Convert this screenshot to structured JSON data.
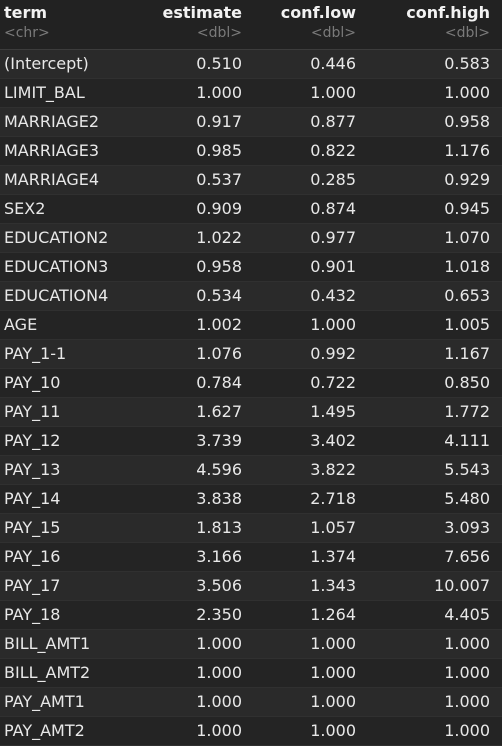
{
  "columns": [
    {
      "name": "term",
      "type": "<chr>"
    },
    {
      "name": "estimate",
      "type": "<dbl>"
    },
    {
      "name": "conf.low",
      "type": "<dbl>"
    },
    {
      "name": "conf.high",
      "type": "<dbl>"
    }
  ],
  "rows": [
    [
      "(Intercept)",
      "0.510",
      "0.446",
      "0.583"
    ],
    [
      "LIMIT_BAL",
      "1.000",
      "1.000",
      "1.000"
    ],
    [
      "MARRIAGE2",
      "0.917",
      "0.877",
      "0.958"
    ],
    [
      "MARRIAGE3",
      "0.985",
      "0.822",
      "1.176"
    ],
    [
      "MARRIAGE4",
      "0.537",
      "0.285",
      "0.929"
    ],
    [
      "SEX2",
      "0.909",
      "0.874",
      "0.945"
    ],
    [
      "EDUCATION2",
      "1.022",
      "0.977",
      "1.070"
    ],
    [
      "EDUCATION3",
      "0.958",
      "0.901",
      "1.018"
    ],
    [
      "EDUCATION4",
      "0.534",
      "0.432",
      "0.653"
    ],
    [
      "AGE",
      "1.002",
      "1.000",
      "1.005"
    ],
    [
      "PAY_1-1",
      "1.076",
      "0.992",
      "1.167"
    ],
    [
      "PAY_10",
      "0.784",
      "0.722",
      "0.850"
    ],
    [
      "PAY_11",
      "1.627",
      "1.495",
      "1.772"
    ],
    [
      "PAY_12",
      "3.739",
      "3.402",
      "4.111"
    ],
    [
      "PAY_13",
      "4.596",
      "3.822",
      "5.543"
    ],
    [
      "PAY_14",
      "3.838",
      "2.718",
      "5.480"
    ],
    [
      "PAY_15",
      "1.813",
      "1.057",
      "3.093"
    ],
    [
      "PAY_16",
      "3.166",
      "1.374",
      "7.656"
    ],
    [
      "PAY_17",
      "3.506",
      "1.343",
      "10.007"
    ],
    [
      "PAY_18",
      "2.350",
      "1.264",
      "4.405"
    ],
    [
      "BILL_AMT1",
      "1.000",
      "1.000",
      "1.000"
    ],
    [
      "BILL_AMT2",
      "1.000",
      "1.000",
      "1.000"
    ],
    [
      "PAY_AMT1",
      "1.000",
      "1.000",
      "1.000"
    ],
    [
      "PAY_AMT2",
      "1.000",
      "1.000",
      "1.000"
    ]
  ]
}
